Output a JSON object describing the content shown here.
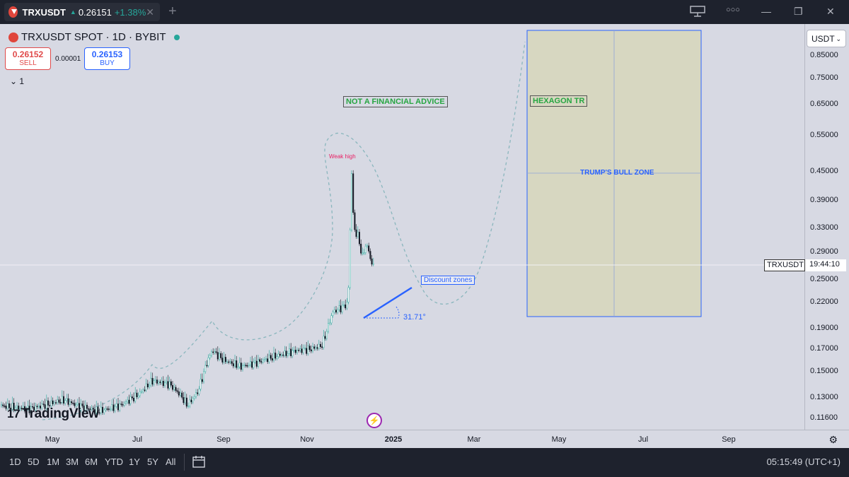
{
  "tab": {
    "symbol": "TRXUSDT",
    "price": "0.26151",
    "change": "+1.38%",
    "close": "✕"
  },
  "window": {
    "plus": "+",
    "menu": "○○○",
    "minimize": "—",
    "restore": "❐",
    "close": "✕"
  },
  "legend": {
    "title": "TRXUSDT SPOT · 1D · BYBIT",
    "sell_price": "0.26152",
    "sell_label": "SELL",
    "spread": "0.00001",
    "buy_price": "0.26153",
    "buy_label": "BUY",
    "indicators": "⌄  1"
  },
  "currency": "USDT",
  "price_labels": [
    "0.85000",
    "0.75000",
    "0.65000",
    "0.55000",
    "0.45000",
    "0.39000",
    "0.33000",
    "0.29000",
    "0.25000",
    "0.22000",
    "0.19000",
    "0.17000",
    "0.15000",
    "0.13000",
    "0.11600"
  ],
  "current": {
    "symbol": "TRXUSDT",
    "countdown": "19:44:10",
    "price": 0.26151
  },
  "time_labels": [
    "May",
    "Jul",
    "Sep",
    "Nov",
    "2025",
    "Mar",
    "May",
    "Jul",
    "Sep"
  ],
  "annotations": {
    "nfa": "NOT A FINANCIAL ADVICE",
    "hexagon": "HEXAGON TR",
    "bull_zone": "TRUMP'S BULL ZONE",
    "weak_high": "Weak high",
    "discount": "Discount zones",
    "angle": "31.71°"
  },
  "watermark": "TradingView",
  "ranges": [
    "1D",
    "5D",
    "1M",
    "3M",
    "6M",
    "YTD",
    "1Y",
    "5Y",
    "All"
  ],
  "clock": "05:15:49 (UTC+1)",
  "colors": {
    "up": "#26a69a",
    "down": "#131722",
    "accent": "#2962ff",
    "sell": "#e04a4a",
    "zone": "#d7d7c1"
  }
}
